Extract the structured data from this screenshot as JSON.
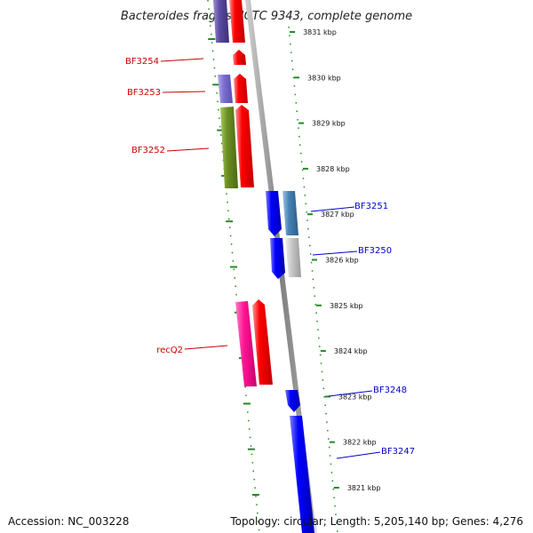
{
  "title": "Bacteroides fragilis NCTC 9343, complete genome",
  "accession": "Accession: NC_003228",
  "topology": "Topology: circular; Length: 5,205,140 bp; Genes: 4,276",
  "ruler": [
    {
      "label": "3831 kbp",
      "kbp": 3831
    },
    {
      "label": "3830 kbp",
      "kbp": 3830
    },
    {
      "label": "3829 kbp",
      "kbp": 3829
    },
    {
      "label": "3828 kbp",
      "kbp": 3828
    },
    {
      "label": "3827 kbp",
      "kbp": 3827
    },
    {
      "label": "3826 kbp",
      "kbp": 3826
    },
    {
      "label": "3825 kbp",
      "kbp": 3825
    },
    {
      "label": "3824 kbp",
      "kbp": 3824
    },
    {
      "label": "3823 kbp",
      "kbp": 3823
    },
    {
      "label": "3822 kbp",
      "kbp": 3822
    },
    {
      "label": "3821 kbp",
      "kbp": 3821
    }
  ],
  "gene_labels": [
    {
      "name": "BF3254",
      "side": "left",
      "color": "#cc0000"
    },
    {
      "name": "BF3253",
      "side": "left",
      "color": "#cc0000"
    },
    {
      "name": "BF3252",
      "side": "left",
      "color": "#cc0000"
    },
    {
      "name": "recQ2",
      "side": "left",
      "color": "#cc0000"
    },
    {
      "name": "BF3251",
      "side": "right",
      "color": "#0000cc"
    },
    {
      "name": "BF3250",
      "side": "right",
      "color": "#0000cc"
    },
    {
      "name": "BF3248",
      "side": "right",
      "color": "#0000cc"
    },
    {
      "name": "BF3247",
      "side": "right",
      "color": "#0000cc"
    }
  ],
  "colors": {
    "forward_gene": "#ff0000",
    "reverse_gene": "#0000ff",
    "backbone": "#888888",
    "tick": "#228b22",
    "cds_purple": "#5b4aa0",
    "cds_lavender": "#7b6fd0",
    "cds_olive": "#6b8e23",
    "cds_pink": "#ff1493",
    "cds_steel": "#4682b4",
    "cds_grey": "#c0c0c0"
  }
}
